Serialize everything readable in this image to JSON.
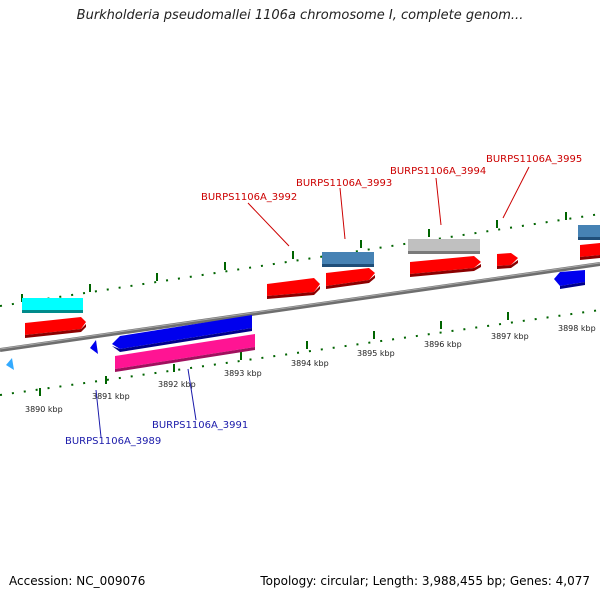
{
  "title": "Burkholderia pseudomallei 1106a chromosome I, complete genom...",
  "footer": {
    "accession": "Accession: NC_009076",
    "summary": "Topology: circular; Length: 3,988,455 bp; Genes: 4,077"
  },
  "kbp_labels": [
    "3890 kbp",
    "3891 kbp",
    "3892 kbp",
    "3893 kbp",
    "3894 kbp",
    "3895 kbp",
    "3896 kbp",
    "3897 kbp",
    "3898 kbp"
  ],
  "gene_labels": {
    "g3989": "BURPS1106A_3989",
    "g3991": "BURPS1106A_3991",
    "g3992": "BURPS1106A_3992",
    "g3993": "BURPS1106A_3993",
    "g3994": "BURPS1106A_3994",
    "g3995": "BURPS1106A_3995"
  },
  "colors": {
    "backbone": "#808080",
    "cds": "#ff0000",
    "gene_blue": "#4682b4",
    "cyan": "#00ffff",
    "strand_blue": "#0000ee",
    "pink": "#ff1493",
    "gray": "#c0c0c0",
    "tick": "#006400"
  }
}
